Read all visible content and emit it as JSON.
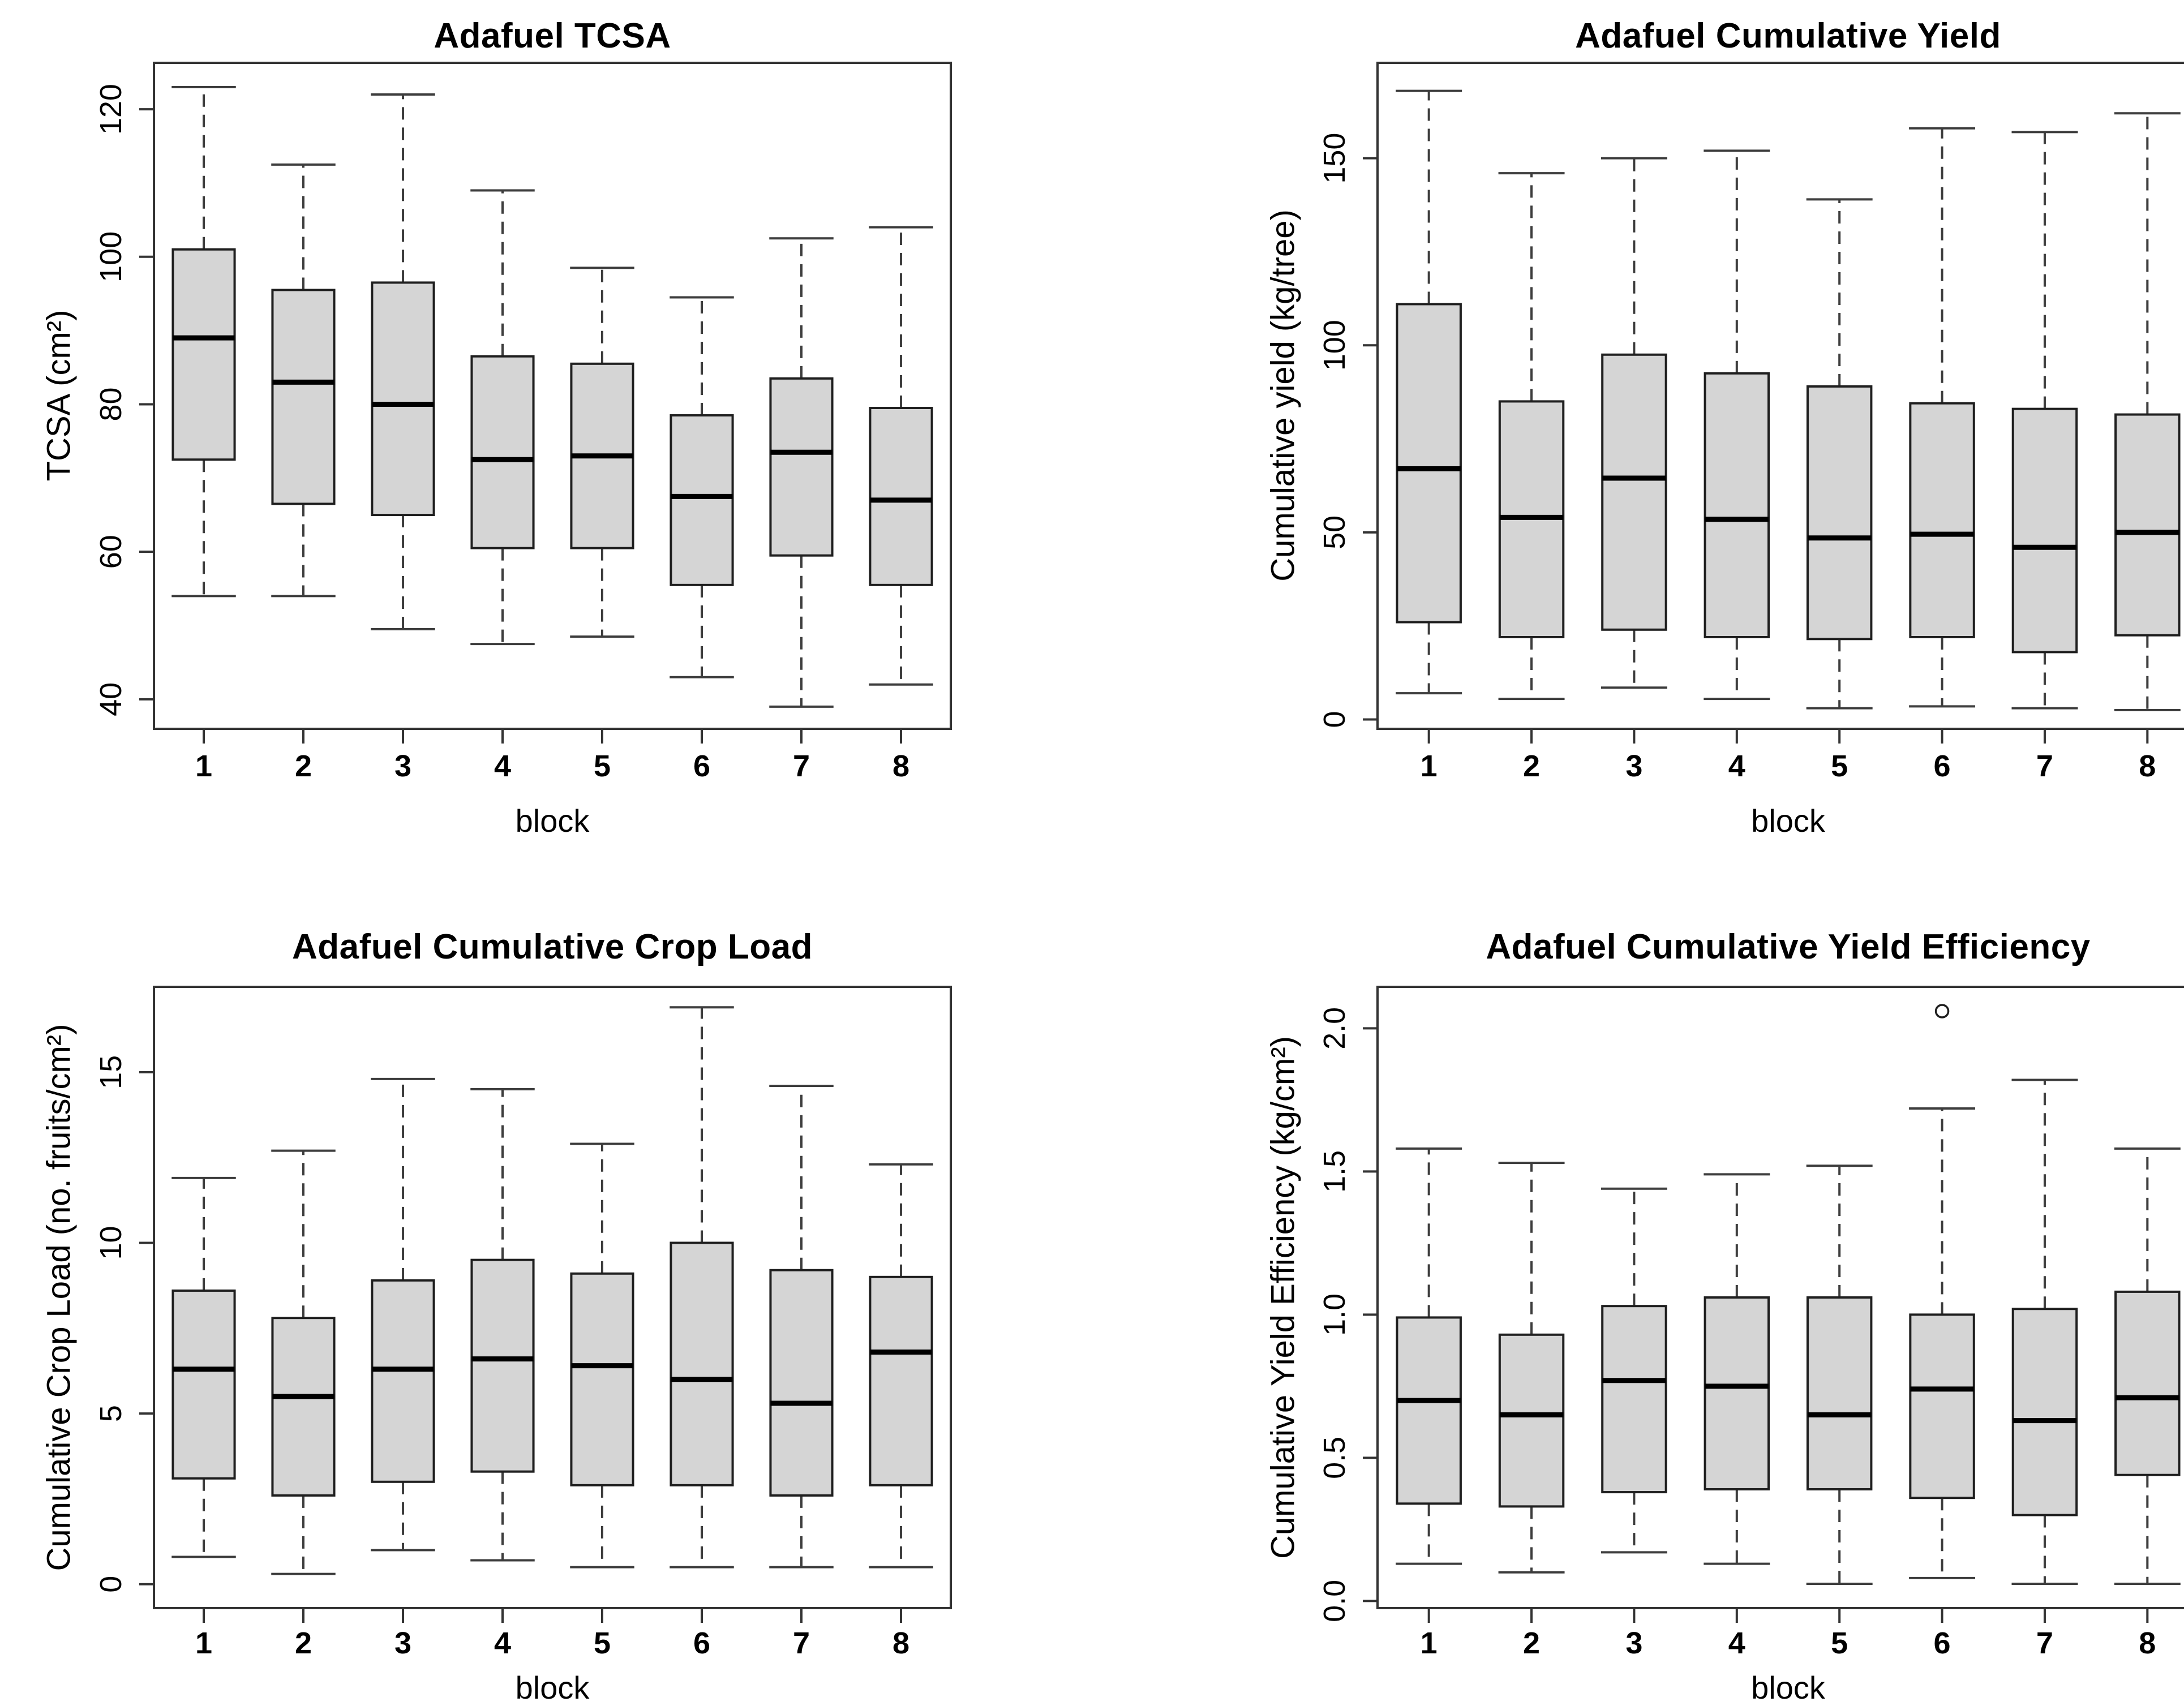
{
  "page": {
    "background": "#ffffff"
  },
  "colors": {
    "box_fill": "#d5d5d5",
    "box_stroke": "#1f1f1f",
    "median": "#000000",
    "whisker": "#3d3d3d",
    "axis": "#333333",
    "text": "#000000"
  },
  "chart_data": [
    {
      "type": "boxplot",
      "title": "Adafuel TCSA",
      "xlabel": "block",
      "ylabel": "TCSA (cm²)",
      "categories": [
        "1",
        "2",
        "3",
        "4",
        "5",
        "6",
        "7",
        "8"
      ],
      "ylim": [
        36,
        126.3
      ],
      "yticks": [
        40,
        60,
        80,
        100,
        120
      ],
      "ytick_labels": [
        "40",
        "60",
        "80",
        "100",
        "120"
      ],
      "boxes": [
        {
          "whislo": 54,
          "q1": 72.5,
          "med": 89,
          "q3": 101,
          "whishi": 123,
          "outliers": []
        },
        {
          "whislo": 54,
          "q1": 66.5,
          "med": 83,
          "q3": 95.5,
          "whishi": 112.5,
          "outliers": []
        },
        {
          "whislo": 49.5,
          "q1": 65,
          "med": 80,
          "q3": 96.5,
          "whishi": 122,
          "outliers": []
        },
        {
          "whislo": 47.5,
          "q1": 60.5,
          "med": 72.5,
          "q3": 86.5,
          "whishi": 109,
          "outliers": []
        },
        {
          "whislo": 48.5,
          "q1": 60.5,
          "med": 73,
          "q3": 85.5,
          "whishi": 98.5,
          "outliers": []
        },
        {
          "whislo": 43,
          "q1": 55.5,
          "med": 67.5,
          "q3": 78.5,
          "whishi": 94.5,
          "outliers": []
        },
        {
          "whislo": 39,
          "q1": 59.5,
          "med": 73.5,
          "q3": 83.5,
          "whishi": 102.5,
          "outliers": []
        },
        {
          "whislo": 42,
          "q1": 55.5,
          "med": 67,
          "q3": 79.5,
          "whishi": 104,
          "outliers": []
        }
      ]
    },
    {
      "type": "boxplot",
      "title": "Adafuel Cumulative Yield",
      "xlabel": "block",
      "ylabel": "Cumulative yield (kg/tree)",
      "categories": [
        "1",
        "2",
        "3",
        "4",
        "5",
        "6",
        "7",
        "8"
      ],
      "ylim": [
        -2.5,
        175.5
      ],
      "yticks": [
        0,
        50,
        100,
        150
      ],
      "ytick_labels": [
        "0",
        "50",
        "100",
        "150"
      ],
      "boxes": [
        {
          "whislo": 7,
          "q1": 26,
          "med": 67,
          "q3": 111,
          "whishi": 168,
          "outliers": []
        },
        {
          "whislo": 5.5,
          "q1": 22,
          "med": 54,
          "q3": 85,
          "whishi": 146,
          "outliers": []
        },
        {
          "whislo": 8.5,
          "q1": 24,
          "med": 64.5,
          "q3": 97.5,
          "whishi": 150,
          "outliers": []
        },
        {
          "whislo": 5.5,
          "q1": 22,
          "med": 53.5,
          "q3": 92.5,
          "whishi": 152,
          "outliers": []
        },
        {
          "whislo": 3,
          "q1": 21.5,
          "med": 48.5,
          "q3": 89,
          "whishi": 139,
          "outliers": []
        },
        {
          "whislo": 3.5,
          "q1": 22,
          "med": 49.5,
          "q3": 84.5,
          "whishi": 158,
          "outliers": []
        },
        {
          "whislo": 3,
          "q1": 18,
          "med": 46,
          "q3": 83,
          "whishi": 157,
          "outliers": []
        },
        {
          "whislo": 2.5,
          "q1": 22.5,
          "med": 50,
          "q3": 81.5,
          "whishi": 162,
          "outliers": []
        }
      ]
    },
    {
      "type": "boxplot",
      "title": "Adafuel Cumulative Crop Load",
      "xlabel": "block",
      "ylabel": "Cumulative Crop Load (no. fruits/cm²)",
      "categories": [
        "1",
        "2",
        "3",
        "4",
        "5",
        "6",
        "7",
        "8"
      ],
      "ylim": [
        -0.7,
        17.5
      ],
      "yticks": [
        0,
        5,
        10,
        15
      ],
      "ytick_labels": [
        "0",
        "5",
        "10",
        "15"
      ],
      "boxes": [
        {
          "whislo": 0.8,
          "q1": 3.1,
          "med": 6.3,
          "q3": 8.6,
          "whishi": 11.9,
          "outliers": []
        },
        {
          "whislo": 0.3,
          "q1": 2.6,
          "med": 5.5,
          "q3": 7.8,
          "whishi": 12.7,
          "outliers": []
        },
        {
          "whislo": 1.0,
          "q1": 3.0,
          "med": 6.3,
          "q3": 8.9,
          "whishi": 14.8,
          "outliers": []
        },
        {
          "whislo": 0.7,
          "q1": 3.3,
          "med": 6.6,
          "q3": 9.5,
          "whishi": 14.5,
          "outliers": []
        },
        {
          "whislo": 0.5,
          "q1": 2.9,
          "med": 6.4,
          "q3": 9.1,
          "whishi": 12.9,
          "outliers": []
        },
        {
          "whislo": 0.5,
          "q1": 2.9,
          "med": 6.0,
          "q3": 10.0,
          "whishi": 16.9,
          "outliers": []
        },
        {
          "whislo": 0.5,
          "q1": 2.6,
          "med": 5.3,
          "q3": 9.2,
          "whishi": 14.6,
          "outliers": []
        },
        {
          "whislo": 0.5,
          "q1": 2.9,
          "med": 6.8,
          "q3": 9.0,
          "whishi": 12.3,
          "outliers": []
        }
      ]
    },
    {
      "type": "boxplot",
      "title": "Adafuel Cumulative Yield Efficiency",
      "xlabel": "block",
      "ylabel": "Cumulative Yield Efficiency (kg/cm²)",
      "categories": [
        "1",
        "2",
        "3",
        "4",
        "5",
        "6",
        "7",
        "8"
      ],
      "ylim": [
        -0.025,
        2.145
      ],
      "yticks": [
        0.0,
        0.5,
        1.0,
        1.5,
        2.0
      ],
      "ytick_labels": [
        "0.0",
        "0.5",
        "1.0",
        "1.5",
        "2.0"
      ],
      "boxes": [
        {
          "whislo": 0.13,
          "q1": 0.34,
          "med": 0.7,
          "q3": 0.99,
          "whishi": 1.58,
          "outliers": []
        },
        {
          "whislo": 0.1,
          "q1": 0.33,
          "med": 0.65,
          "q3": 0.93,
          "whishi": 1.53,
          "outliers": []
        },
        {
          "whislo": 0.17,
          "q1": 0.38,
          "med": 0.77,
          "q3": 1.03,
          "whishi": 1.44,
          "outliers": []
        },
        {
          "whislo": 0.13,
          "q1": 0.39,
          "med": 0.75,
          "q3": 1.06,
          "whishi": 1.49,
          "outliers": []
        },
        {
          "whislo": 0.06,
          "q1": 0.39,
          "med": 0.65,
          "q3": 1.06,
          "whishi": 1.52,
          "outliers": []
        },
        {
          "whislo": 0.08,
          "q1": 0.36,
          "med": 0.74,
          "q3": 1.0,
          "whishi": 1.72,
          "outliers": [
            2.06
          ]
        },
        {
          "whislo": 0.06,
          "q1": 0.3,
          "med": 0.63,
          "q3": 1.02,
          "whishi": 1.82,
          "outliers": []
        },
        {
          "whislo": 0.06,
          "q1": 0.44,
          "med": 0.71,
          "q3": 1.08,
          "whishi": 1.58,
          "outliers": []
        }
      ]
    }
  ]
}
